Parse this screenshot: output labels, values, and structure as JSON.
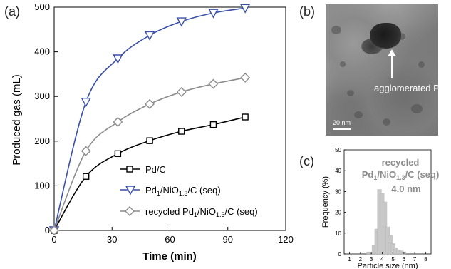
{
  "chart_data": [
    {
      "panel": "(a)",
      "type": "line",
      "xlabel": "Time (min)",
      "ylabel": "Produced gas (mL)",
      "xlim": [
        0,
        120
      ],
      "ylim": [
        0,
        500
      ],
      "xticks": [
        0,
        30,
        60,
        90,
        120
      ],
      "yticks": [
        0,
        100,
        200,
        300,
        400,
        500
      ],
      "legend_position": "bottom-right",
      "series": [
        {
          "name": "Pd/C",
          "marker": "square",
          "color": "#000000",
          "x": [
            0,
            16.5,
            33,
            49.5,
            66,
            82.5,
            99
          ],
          "y": [
            0,
            121,
            172,
            201,
            222,
            237,
            254
          ]
        },
        {
          "name": "Pd1/NiO1.3/C  (seq)",
          "marker": "triangle-down",
          "color": "#3a4fa8",
          "x": [
            0,
            16.5,
            33,
            49.5,
            66,
            82.5,
            99
          ],
          "y": [
            0,
            288,
            385,
            437,
            468,
            487,
            498
          ]
        },
        {
          "name": "recycled Pd1/NiO1.3/C (seq)",
          "marker": "diamond",
          "color": "#8c8c8c",
          "x": [
            0,
            16.5,
            33,
            49.5,
            66,
            82.5,
            99
          ],
          "y": [
            0,
            178,
            243,
            283,
            310,
            328,
            342
          ]
        }
      ]
    },
    {
      "panel": "(c)",
      "type": "bar",
      "xlabel": "Particle size (nm)",
      "ylabel": "Frequency (%)",
      "xlim": [
        1,
        8
      ],
      "ylim": [
        0,
        50
      ],
      "xticks": [
        1,
        2,
        3,
        4,
        5,
        6,
        7,
        8
      ],
      "yticks": [
        0,
        10,
        20,
        30,
        40,
        50
      ],
      "bar_width": 0.4,
      "color": "#c8c8c8",
      "annotation": [
        "recycled",
        "Pd1/NiO1.3/C (seq)",
        "4.0 nm"
      ],
      "x": [
        2.75,
        3.25,
        3.5,
        3.75,
        4.0,
        4.25,
        4.5,
        4.75,
        5.0,
        5.25,
        5.5,
        5.75,
        6.0
      ],
      "values": [
        1,
        4,
        12,
        31,
        29,
        25,
        13,
        9,
        5,
        3,
        2,
        1.5,
        1
      ]
    }
  ],
  "panel_labels": {
    "a": "(a)",
    "b": "(b)",
    "c": "(c)"
  },
  "tem": {
    "annotation": "agglomerated Pd",
    "scale_label": "20 nm"
  },
  "legend_sub": {
    "series2": {
      "pre": "Pd",
      "s1": "1",
      "mid": "/NiO",
      "s2": "1.3",
      "post": "/C  (seq)"
    },
    "series3": {
      "pre": "recycled Pd",
      "s1": "1",
      "mid": "/NiO",
      "s2": "1.3",
      "post": "/C (seq)"
    }
  },
  "hist_annot_sub": {
    "pre": "Pd",
    "s1": "1",
    "mid": "/NiO",
    "s2": "1.3",
    "post": "/C (seq)"
  }
}
